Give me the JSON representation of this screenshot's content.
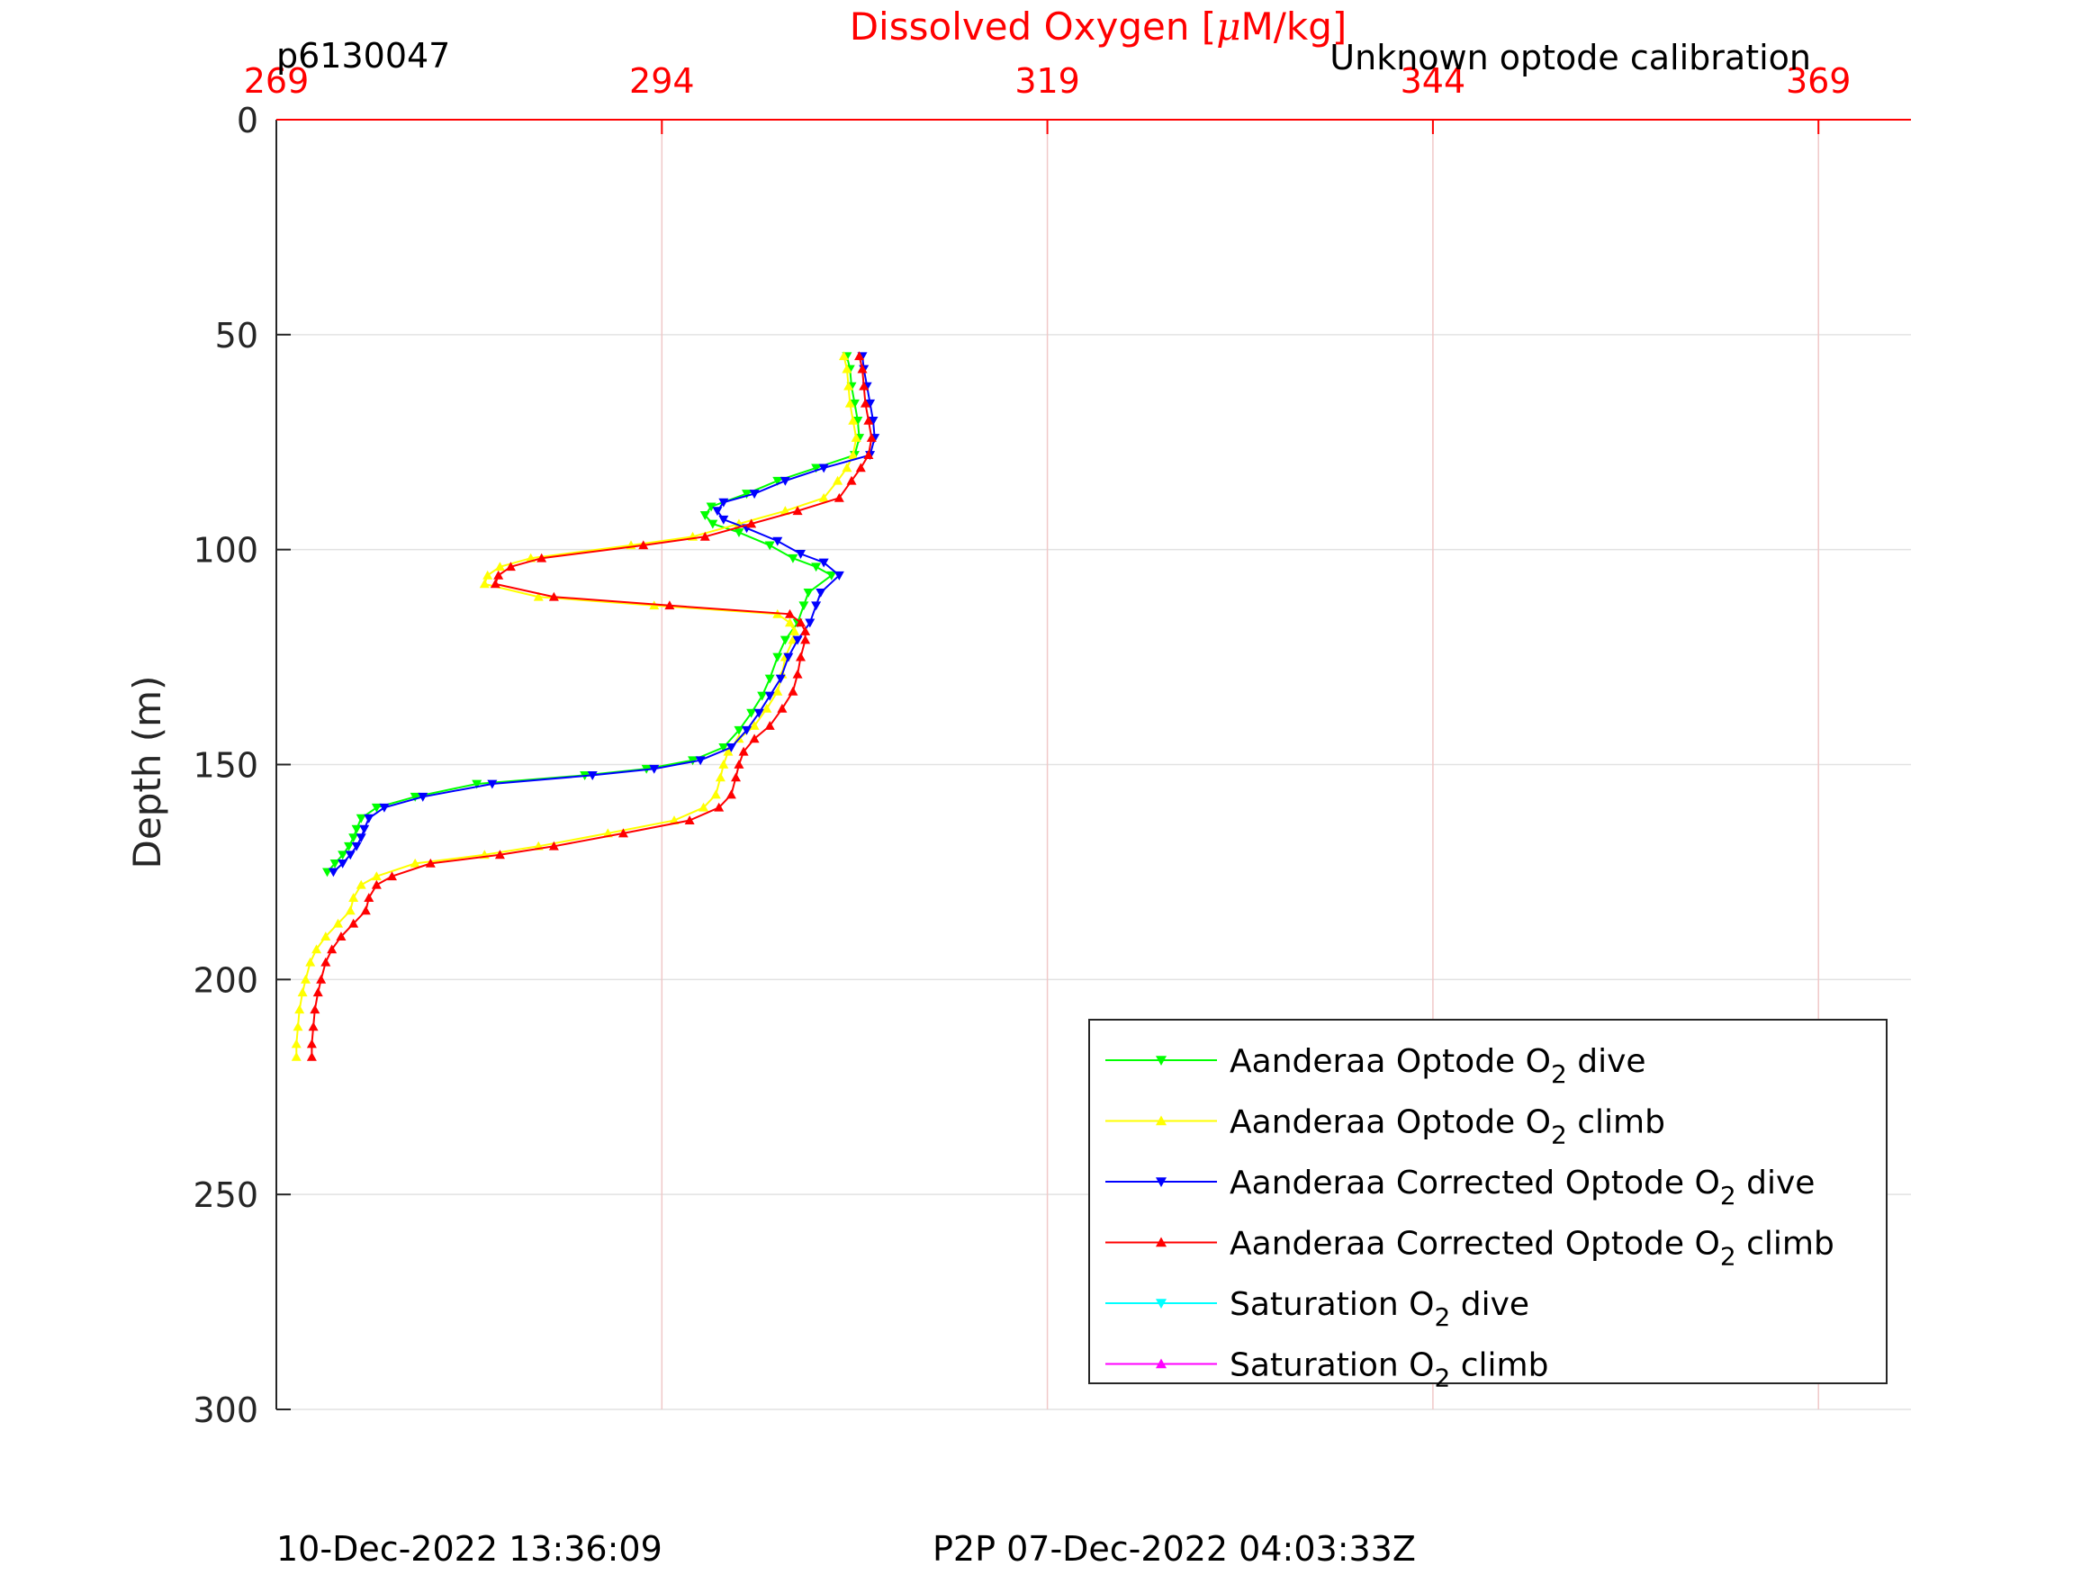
{
  "header": {
    "profile_id": "p6130047",
    "calibration_note": "Unknown optode calibration"
  },
  "footer": {
    "timestamp_left": "10-Dec-2022 13:36:09",
    "timestamp_right": "P2P 07-Dec-2022 04:03:33Z"
  },
  "colors": {
    "top_axis": "#ff0000",
    "grid": "#f0c8c8",
    "hgrid": "#e2e2e2",
    "axis": "#262626"
  },
  "chart_data": {
    "type": "line",
    "title": "",
    "xlabel": "Dissolved Oxygen [μM/kg]",
    "xlabel_parts": [
      "Dissolved Oxygen [",
      "μ",
      "M/kg]"
    ],
    "ylabel": "Depth (m)",
    "xlim": [
      269,
      375
    ],
    "ylim": [
      0,
      300
    ],
    "y_reversed": true,
    "grid": true,
    "legend_position": "lower-right",
    "x_ticks": [
      269,
      294,
      319,
      344,
      369
    ],
    "y_ticks": [
      0,
      50,
      100,
      150,
      200,
      250,
      300
    ],
    "series": [
      {
        "name": "Aanderaa Optode O2 dive",
        "label_parts": [
          "Aanderaa Optode O",
          "2",
          " dive"
        ],
        "color": "#00ff00",
        "marker": "down",
        "points": [
          [
            306.0,
            55
          ],
          [
            306.2,
            58
          ],
          [
            306.3,
            62
          ],
          [
            306.5,
            66
          ],
          [
            306.7,
            70
          ],
          [
            306.8,
            74
          ],
          [
            306.5,
            78
          ],
          [
            304.0,
            81
          ],
          [
            301.5,
            84
          ],
          [
            299.5,
            87
          ],
          [
            297.2,
            90
          ],
          [
            296.8,
            92
          ],
          [
            297.3,
            94
          ],
          [
            299.0,
            96
          ],
          [
            301.0,
            99
          ],
          [
            302.5,
            102
          ],
          [
            304.0,
            104
          ],
          [
            305.0,
            106
          ],
          [
            303.5,
            110
          ],
          [
            303.2,
            113
          ],
          [
            302.8,
            117
          ],
          [
            302.0,
            121
          ],
          [
            301.5,
            125
          ],
          [
            301.0,
            130
          ],
          [
            300.5,
            134
          ],
          [
            299.8,
            138
          ],
          [
            299.0,
            142
          ],
          [
            298.0,
            146
          ],
          [
            296.0,
            149
          ],
          [
            293.0,
            151
          ],
          [
            289.0,
            152.5
          ],
          [
            282.0,
            154.5
          ],
          [
            278.0,
            157.5
          ],
          [
            275.5,
            160
          ],
          [
            274.5,
            162.5
          ],
          [
            274.2,
            165
          ],
          [
            274.0,
            167
          ],
          [
            273.7,
            169
          ],
          [
            273.3,
            171
          ],
          [
            272.8,
            173
          ],
          [
            272.3,
            175
          ]
        ]
      },
      {
        "name": "Aanderaa Optode O2 climb",
        "label_parts": [
          "Aanderaa Optode O",
          "2",
          " climb"
        ],
        "color": "#ffff00",
        "marker": "up",
        "points": [
          [
            305.8,
            55
          ],
          [
            306.0,
            58
          ],
          [
            306.1,
            62
          ],
          [
            306.2,
            66
          ],
          [
            306.4,
            70
          ],
          [
            306.6,
            74
          ],
          [
            306.4,
            78
          ],
          [
            306.0,
            81
          ],
          [
            305.4,
            84
          ],
          [
            304.5,
            88
          ],
          [
            302.0,
            91
          ],
          [
            299.0,
            94
          ],
          [
            296.0,
            97
          ],
          [
            292.0,
            99
          ],
          [
            285.5,
            102
          ],
          [
            283.5,
            104
          ],
          [
            282.7,
            106
          ],
          [
            282.5,
            108
          ],
          [
            286.0,
            111
          ],
          [
            293.5,
            113
          ],
          [
            301.5,
            115
          ],
          [
            302.3,
            117
          ],
          [
            302.6,
            119
          ],
          [
            302.5,
            121
          ],
          [
            302.0,
            125
          ],
          [
            301.8,
            129
          ],
          [
            301.5,
            133
          ],
          [
            300.8,
            137
          ],
          [
            300.0,
            141
          ],
          [
            299.0,
            144
          ],
          [
            298.3,
            147
          ],
          [
            298.0,
            150
          ],
          [
            297.8,
            153
          ],
          [
            297.5,
            157
          ],
          [
            296.7,
            160
          ],
          [
            294.8,
            163
          ],
          [
            290.5,
            166
          ],
          [
            286.0,
            169
          ],
          [
            282.5,
            171
          ],
          [
            278.0,
            173
          ],
          [
            275.5,
            176
          ],
          [
            274.5,
            178
          ],
          [
            274.0,
            181
          ],
          [
            273.8,
            184
          ],
          [
            273.0,
            187
          ],
          [
            272.2,
            190
          ],
          [
            271.6,
            193
          ],
          [
            271.2,
            196
          ],
          [
            270.9,
            200
          ],
          [
            270.7,
            203
          ],
          [
            270.5,
            207
          ],
          [
            270.4,
            211
          ],
          [
            270.3,
            215
          ],
          [
            270.3,
            218
          ]
        ]
      },
      {
        "name": "Aanderaa Corrected Optode O2 dive",
        "label_parts": [
          "Aanderaa Corrected Optode O",
          "2",
          " dive"
        ],
        "color": "#0000ff",
        "marker": "down",
        "points": [
          [
            307.0,
            55
          ],
          [
            307.1,
            58
          ],
          [
            307.3,
            62
          ],
          [
            307.5,
            66
          ],
          [
            307.7,
            70
          ],
          [
            307.8,
            74
          ],
          [
            307.5,
            78
          ],
          [
            304.5,
            81
          ],
          [
            302.0,
            84
          ],
          [
            300.0,
            87
          ],
          [
            298.0,
            89
          ],
          [
            297.6,
            91
          ],
          [
            298.0,
            93
          ],
          [
            299.5,
            95
          ],
          [
            301.5,
            98
          ],
          [
            303.0,
            101
          ],
          [
            304.5,
            103
          ],
          [
            305.5,
            106
          ],
          [
            304.3,
            110
          ],
          [
            304.0,
            113
          ],
          [
            303.6,
            117
          ],
          [
            302.8,
            121
          ],
          [
            302.2,
            125
          ],
          [
            301.7,
            130
          ],
          [
            301.0,
            134
          ],
          [
            300.3,
            138
          ],
          [
            299.5,
            142
          ],
          [
            298.5,
            146
          ],
          [
            296.5,
            149
          ],
          [
            293.5,
            151
          ],
          [
            289.5,
            152.5
          ],
          [
            283.0,
            154.5
          ],
          [
            278.5,
            157.5
          ],
          [
            276.0,
            160
          ],
          [
            275.0,
            162.5
          ],
          [
            274.7,
            165
          ],
          [
            274.5,
            167
          ],
          [
            274.2,
            169
          ],
          [
            273.8,
            171
          ],
          [
            273.3,
            173
          ],
          [
            272.7,
            175
          ]
        ]
      },
      {
        "name": "Aanderaa Corrected Optode O2 climb",
        "label_parts": [
          "Aanderaa Corrected Optode O",
          "2",
          " climb"
        ],
        "color": "#ff0000",
        "marker": "up",
        "points": [
          [
            306.8,
            55
          ],
          [
            307.0,
            58
          ],
          [
            307.1,
            62
          ],
          [
            307.2,
            66
          ],
          [
            307.4,
            70
          ],
          [
            307.6,
            74
          ],
          [
            307.4,
            78
          ],
          [
            306.9,
            81
          ],
          [
            306.3,
            84
          ],
          [
            305.5,
            88
          ],
          [
            302.8,
            91
          ],
          [
            299.8,
            94
          ],
          [
            296.8,
            97
          ],
          [
            292.8,
            99
          ],
          [
            286.2,
            102
          ],
          [
            284.2,
            104
          ],
          [
            283.4,
            106
          ],
          [
            283.2,
            108
          ],
          [
            287.0,
            111
          ],
          [
            294.5,
            113
          ],
          [
            302.3,
            115
          ],
          [
            303.0,
            117
          ],
          [
            303.3,
            119
          ],
          [
            303.3,
            121
          ],
          [
            303.0,
            125
          ],
          [
            302.8,
            129
          ],
          [
            302.5,
            133
          ],
          [
            301.8,
            137
          ],
          [
            301.0,
            141
          ],
          [
            300.0,
            144
          ],
          [
            299.3,
            147
          ],
          [
            299.0,
            150
          ],
          [
            298.8,
            153
          ],
          [
            298.5,
            157
          ],
          [
            297.7,
            160
          ],
          [
            295.8,
            163
          ],
          [
            291.5,
            166
          ],
          [
            287.0,
            169
          ],
          [
            283.5,
            171
          ],
          [
            279.0,
            173
          ],
          [
            276.5,
            176
          ],
          [
            275.5,
            178
          ],
          [
            275.0,
            181
          ],
          [
            274.8,
            184
          ],
          [
            274.0,
            187
          ],
          [
            273.2,
            190
          ],
          [
            272.6,
            193
          ],
          [
            272.2,
            196
          ],
          [
            271.9,
            200
          ],
          [
            271.7,
            203
          ],
          [
            271.5,
            207
          ],
          [
            271.4,
            211
          ],
          [
            271.3,
            215
          ],
          [
            271.3,
            218
          ]
        ]
      },
      {
        "name": "Saturation O2 dive",
        "label_parts": [
          "Saturation O",
          "2",
          " dive"
        ],
        "color": "#00ffff",
        "marker": "down",
        "points": []
      },
      {
        "name": "Saturation O2 climb",
        "label_parts": [
          "Saturation O",
          "2",
          " climb"
        ],
        "color": "#ff00ff",
        "marker": "up",
        "points": []
      }
    ]
  }
}
